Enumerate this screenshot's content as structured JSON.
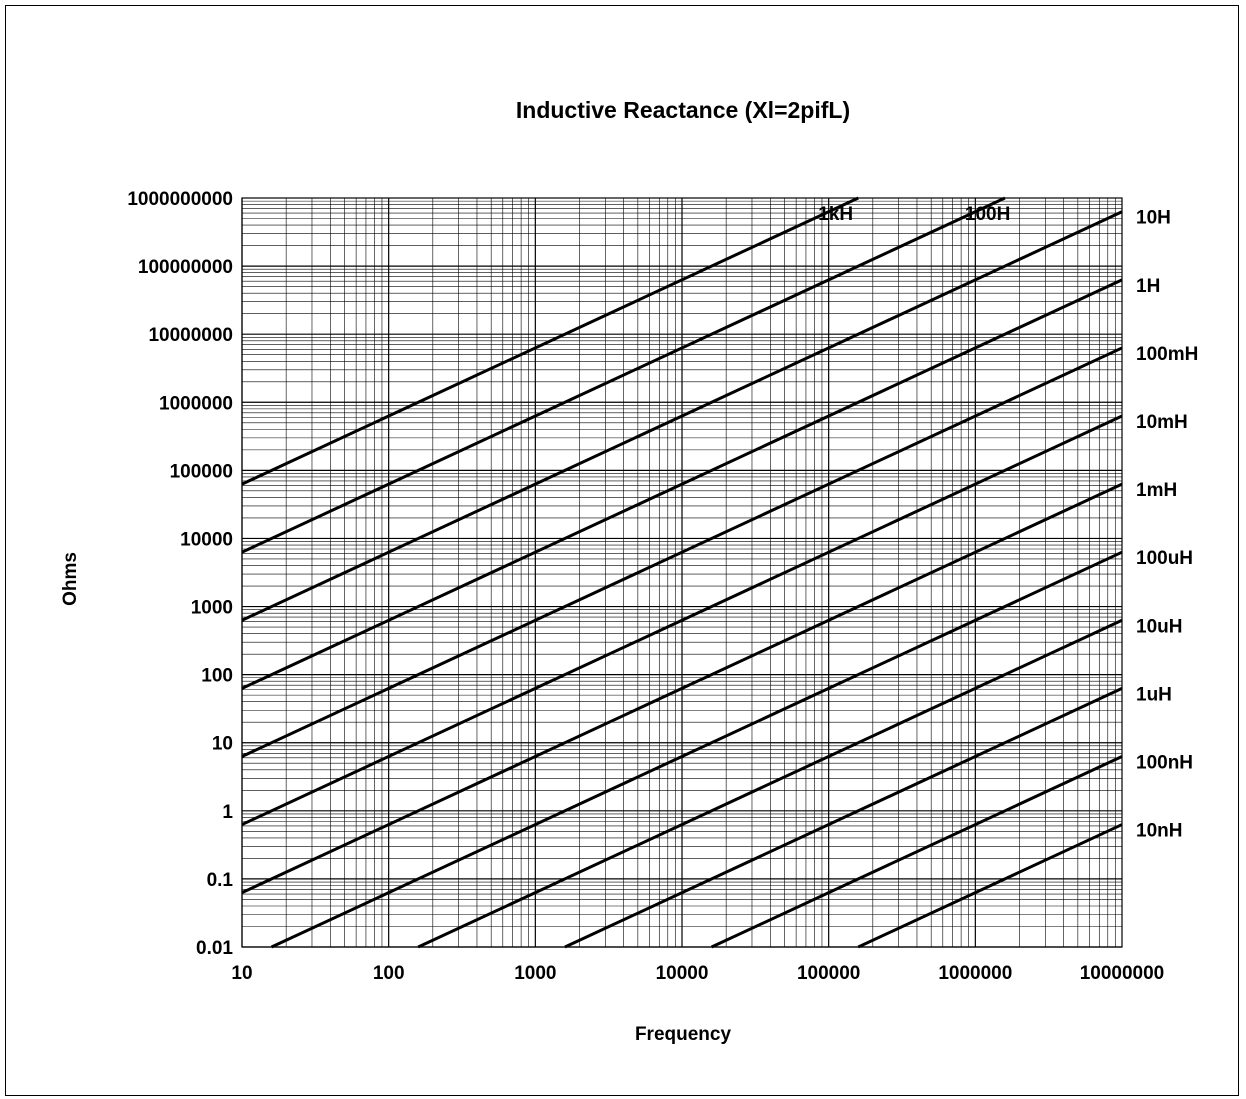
{
  "chart_data": {
    "type": "line",
    "title": "Inductive Reactance (Xl=2pifL)",
    "xlabel": "Frequency",
    "ylabel": "Ohms",
    "x_scale": "log",
    "y_scale": "log",
    "xlim": [
      10,
      10000000
    ],
    "ylim": [
      0.01,
      1000000000
    ],
    "grid": true,
    "x_ticks": [
      "10",
      "100",
      "1000",
      "10000",
      "100000",
      "1000000",
      "10000000"
    ],
    "y_ticks": [
      "0.01",
      "0.1",
      "1",
      "10",
      "100",
      "1000",
      "10000",
      "100000",
      "1000000",
      "10000000",
      "100000000",
      "1000000000"
    ],
    "series": [
      {
        "name": "1kH",
        "inductance_h": 1000,
        "x": [
          10,
          159155
        ],
        "y": [
          62832,
          1000000000
        ]
      },
      {
        "name": "100H",
        "inductance_h": 100,
        "x": [
          10,
          1591550
        ],
        "y": [
          6283,
          1000000000
        ]
      },
      {
        "name": "10H",
        "inductance_h": 10,
        "x": [
          10,
          10000000
        ],
        "y": [
          628.3,
          628318531
        ]
      },
      {
        "name": "1H",
        "inductance_h": 1,
        "x": [
          10,
          10000000
        ],
        "y": [
          62.83,
          62831853
        ]
      },
      {
        "name": "100mH",
        "inductance_h": 0.1,
        "x": [
          10,
          10000000
        ],
        "y": [
          6.283,
          6283185
        ]
      },
      {
        "name": "10mH",
        "inductance_h": 0.01,
        "x": [
          10,
          10000000
        ],
        "y": [
          0.6283,
          628319
        ]
      },
      {
        "name": "1mH",
        "inductance_h": 0.001,
        "x": [
          10,
          10000000
        ],
        "y": [
          0.06283,
          62832
        ]
      },
      {
        "name": "100uH",
        "inductance_h": 0.0001,
        "x": [
          15.9,
          10000000
        ],
        "y": [
          0.01,
          6283
        ]
      },
      {
        "name": "10uH",
        "inductance_h": 1e-05,
        "x": [
          159,
          10000000
        ],
        "y": [
          0.01,
          628.3
        ]
      },
      {
        "name": "1uH",
        "inductance_h": 1e-06,
        "x": [
          1592,
          10000000
        ],
        "y": [
          0.01,
          62.83
        ]
      },
      {
        "name": "100nH",
        "inductance_h": 1e-07,
        "x": [
          15915,
          10000000
        ],
        "y": [
          0.01,
          6.283
        ]
      },
      {
        "name": "10nH",
        "inductance_h": 1e-08,
        "x": [
          159155,
          10000000
        ],
        "y": [
          0.01,
          0.6283
        ]
      }
    ]
  }
}
